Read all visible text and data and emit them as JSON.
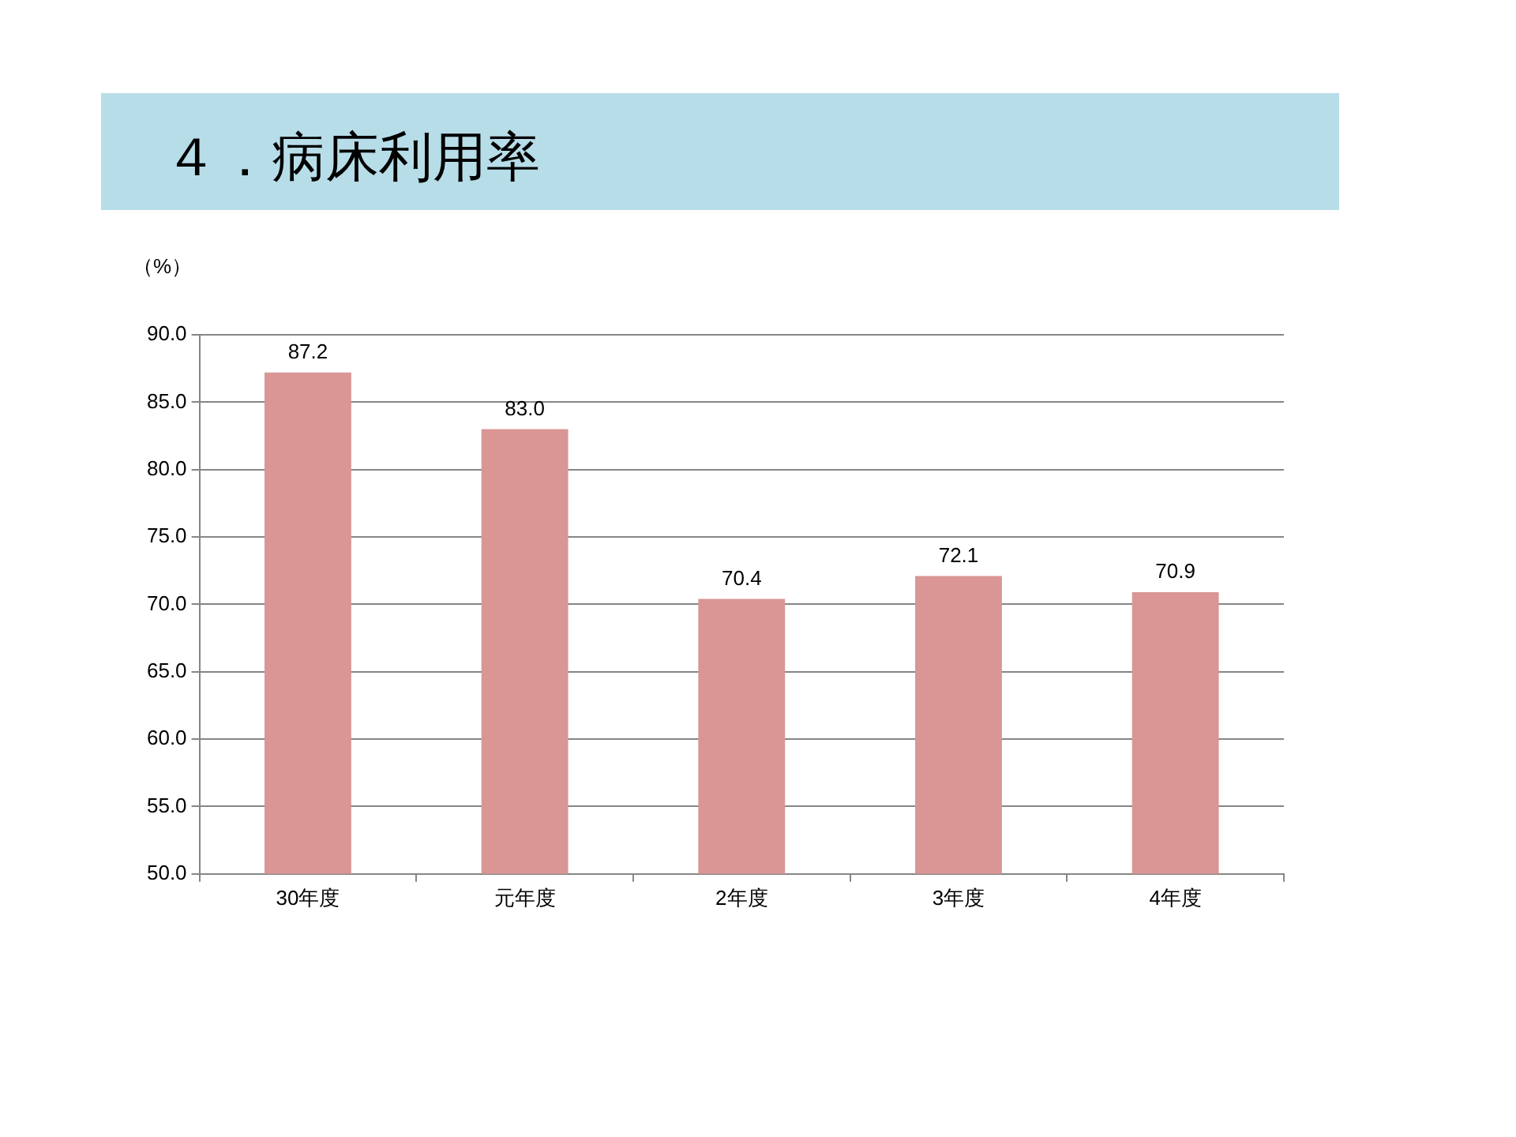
{
  "chart_data": {
    "type": "bar",
    "title": "４．病床利用率",
    "ylabel": "（%）",
    "categories": [
      "30年度",
      "元年度",
      "2年度",
      "3年度",
      "4年度"
    ],
    "values": [
      87.2,
      83.0,
      70.4,
      72.1,
      70.9
    ],
    "value_labels": [
      "87.2",
      "83.0",
      "70.4",
      "72.1",
      "70.9"
    ],
    "color": "#d99694",
    "ylim": [
      50,
      90
    ],
    "yticks": [
      {
        "value": 50,
        "label": "50.0"
      },
      {
        "value": 55,
        "label": "55.0"
      },
      {
        "value": 60,
        "label": "60.0"
      },
      {
        "value": 65,
        "label": "65.0"
      },
      {
        "value": 70,
        "label": "70.0"
      },
      {
        "value": 75,
        "label": "75.0"
      },
      {
        "value": 80,
        "label": "80.0"
      },
      {
        "value": 85,
        "label": "85.0"
      },
      {
        "value": 90,
        "label": "90.0"
      }
    ],
    "grid": "y"
  }
}
